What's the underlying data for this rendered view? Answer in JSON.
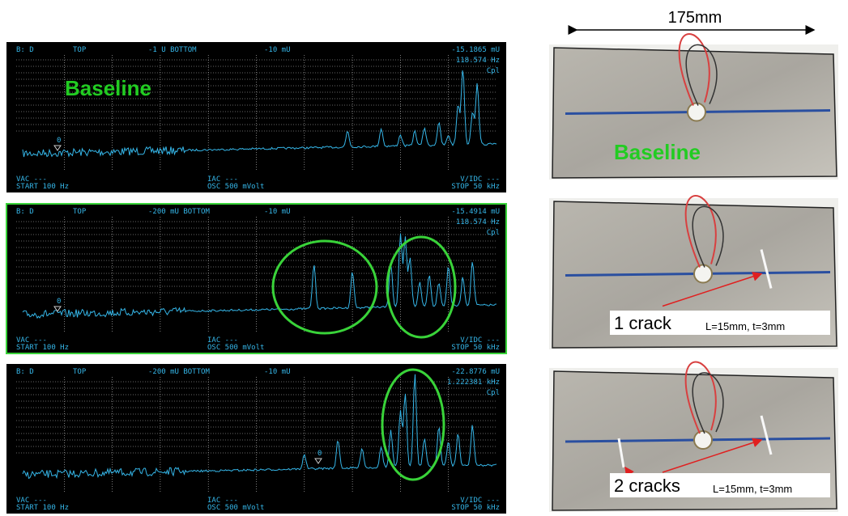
{
  "dimension": "175mm",
  "screens": [
    {
      "channel": "B: D",
      "top": "TOP",
      "bottom": "-1 U BOTTOM",
      "ref": "-10 mU",
      "marker_value": "-15.1865 mU",
      "marker_freq": "118.574 Hz",
      "mode": "Cpl",
      "marker": "0",
      "vac": "VAC ---",
      "start": "START 100 Hz",
      "iac": "IAC ---",
      "osc": "OSC 500 mVolt",
      "vidc": "V/IDC ---",
      "stop": "STOP 50 kHz",
      "label": "Baseline"
    },
    {
      "channel": "B: D",
      "top": "TOP",
      "bottom": "-200 mU BOTTOM",
      "ref": "-10 mU",
      "marker_value": "-15.4914 mU",
      "marker_freq": "118.574 Hz",
      "mode": "Cpl",
      "marker": "0",
      "vac": "VAC ---",
      "start": "START 100 Hz",
      "iac": "IAC ---",
      "osc": "OSC 500 mVolt",
      "vidc": "V/IDC ---",
      "stop": "STOP 50 kHz"
    },
    {
      "channel": "B: D",
      "top": "TOP",
      "bottom": "-200 mU BOTTOM",
      "ref": "-10 mU",
      "marker_value": "-22.8776 mU",
      "marker_freq": "1.222381 kHz",
      "mode": "Cpl",
      "marker": "0",
      "vac": "VAC ---",
      "start": "START 100 Hz",
      "iac": "IAC ---",
      "osc": "OSC 500 mVolt",
      "vidc": "V/IDC ---",
      "stop": "STOP 50 kHz"
    }
  ],
  "photos": [
    {
      "label": "Baseline"
    },
    {
      "label": "1 crack",
      "note": "L=15mm, t=3mm"
    },
    {
      "label": "2 cracks",
      "note": "L=15mm, t=3mm"
    }
  ]
}
